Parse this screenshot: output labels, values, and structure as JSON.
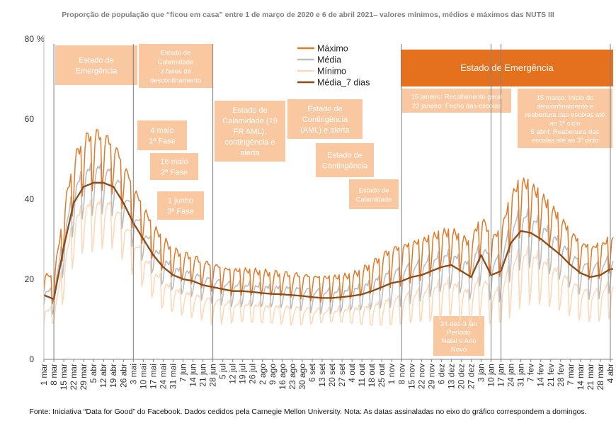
{
  "title": "Proporção de população que “ficou em casa” entre 1 de março de 2020 e 6 de abril 2021– valores mínimos, médios e máximos das NUTS III",
  "footer": "Fonte: Iniciativa “Data for Good” do Facebook. Dados cedidos pela Carnegie Mellon University. Nota: As datas assinaladas no eixo do gráfico correspondem a domingos.",
  "colors": {
    "maximo": "#e07a2a",
    "media": "#bdbdbd",
    "minimo": "#fbd9bb",
    "media7": "#8b4a1a",
    "box": "#f9c8a0",
    "bigbox": "#e5711e",
    "vline": "#7f7f7f"
  },
  "chart_data": {
    "type": "line",
    "title": "Proporção de população que “ficou em casa” entre 1 de março de 2020 e 6 de abril 2021– valores mínimos, médios e máximos das NUTS III",
    "ylabel": "%",
    "ylim": [
      0,
      80
    ],
    "yticks": [
      0,
      20,
      40,
      60,
      80
    ],
    "ytick_labels": [
      "0",
      "20",
      "40",
      "60",
      "80"
    ],
    "x_start": "2020-03-01",
    "x_end": "2021-04-06",
    "x_ticks": [
      "1 mar",
      "8 mar",
      "15 mar",
      "22 mar",
      "29 mar",
      "5 abr",
      "12 abr",
      "19 abr",
      "26 abr",
      "3 mai",
      "10 mai",
      "17 mai",
      "24 mai",
      "31 mai",
      "7 jun",
      "14 jun",
      "21 jun",
      "28 jun",
      "5 jul",
      "12 jul",
      "19 jul",
      "26 jul",
      "2 ago",
      "9 ago",
      "16 ago",
      "23 ago",
      "30 ago",
      "6 set",
      "13 set",
      "20 set",
      "27 set",
      "4 out",
      "11 out",
      "18 out",
      "25 out",
      "1 nov",
      "8 nov",
      "15 nov",
      "22 nov",
      "29 nov",
      "6 dez",
      "13 dez",
      "20 dez",
      "27 dez",
      "3 jan",
      "10 jan",
      "17 jan",
      "24 jan",
      "31 jan",
      "7 fev",
      "14 fev",
      "21 fev",
      "28 fev",
      "7 mar",
      "14 mar",
      "21 mar",
      "28 mar",
      "4 abr"
    ],
    "series_names": [
      "Máximo",
      "Média",
      "Mínimo",
      "Média_7 dias"
    ],
    "legend_position": "top-center",
    "media7_weekly": [
      16,
      15,
      28,
      39,
      43,
      44,
      44,
      43,
      39,
      34,
      30,
      26,
      23,
      21,
      20,
      19.5,
      18.5,
      18,
      17.5,
      17,
      17,
      16.8,
      16.5,
      16.3,
      16.2,
      16,
      15.8,
      15.5,
      15.3,
      15.3,
      15.5,
      15.8,
      16.2,
      17,
      18,
      19,
      19.5,
      20.5,
      21,
      22,
      23,
      23.5,
      22,
      20.5,
      26,
      21,
      22,
      29,
      32,
      31.5,
      30,
      28,
      26,
      23.5,
      21.5,
      20.5,
      21,
      22.5
    ],
    "weekly_amplitude": [
      6,
      6,
      10,
      12,
      13,
      14,
      13,
      12,
      11,
      10,
      9,
      8,
      8,
      7,
      7,
      7,
      6.5,
      6.5,
      6,
      6,
      6,
      6,
      6,
      6,
      6,
      6,
      6,
      6,
      6,
      6,
      6,
      6,
      7,
      8,
      9,
      10,
      10,
      10,
      10,
      10,
      10,
      10,
      10,
      10,
      12,
      11,
      12,
      14,
      15,
      14,
      13,
      12,
      11,
      10,
      9,
      9,
      9,
      9
    ],
    "events": [
      {
        "date": "2020-03-08"
      },
      {
        "date": "2020-05-03"
      },
      {
        "date": "2020-06-28"
      },
      {
        "date": "2020-11-08"
      },
      {
        "date": "2021-01-10"
      },
      {
        "date": "2021-01-17"
      },
      {
        "date": "2021-04-04"
      }
    ],
    "annotations": [
      {
        "lines": [
          "Estado de",
          "Emergência"
        ]
      },
      {
        "lines": [
          "Estado de",
          "Calamidade",
          "3 fases de",
          "desconfinamento"
        ]
      },
      {
        "lines": [
          "4 maio",
          "1ª Fase"
        ]
      },
      {
        "lines": [
          "18 maio",
          "2ª Fase"
        ]
      },
      {
        "lines": [
          "1 junho",
          "3ª Fase"
        ]
      },
      {
        "lines": [
          "Estado de",
          "Calamidade (19",
          "FR AML),",
          "contingência e",
          "alerta"
        ]
      },
      {
        "lines": [
          "Estado de",
          "Contingência",
          "(AML) e alerta"
        ]
      },
      {
        "lines": [
          "Estado de",
          "Contingência"
        ]
      },
      {
        "lines": [
          "Estado de",
          "Calamidade"
        ]
      },
      {
        "lines": [
          "Estado de Emergência"
        ]
      },
      {
        "lines": [
          "15 janeiro: Recolhimento geral",
          "22 janeiro: Fecho das escolas"
        ]
      },
      {
        "lines": [
          "15 março: Início do",
          "desconfinamento e",
          "reabertura das escolas até",
          "ao 1º ciclo",
          "5 abril: Reabertura das",
          "escolas até ao 3º ciclo"
        ]
      },
      {
        "lines": [
          "24 dez-3 jan",
          "Período",
          "Natal e Ano",
          "Novo"
        ]
      }
    ]
  }
}
